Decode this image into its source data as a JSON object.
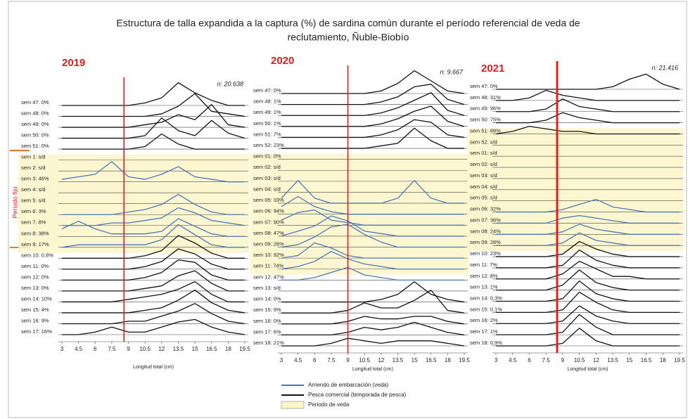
{
  "title": [
    "Estructura de talla expandida a la captura (%) de sardina común durante el período referencial de veda de",
    "reclutamiento, Ñuble-Biobío"
  ],
  "side_label": "Periodo fijo",
  "legend": [
    {
      "label": "Arriendo de embarcación (veda)",
      "color": "#4a78b5"
    },
    {
      "label": "Pesca comercial (temporada de pesca)",
      "color": "#111111"
    },
    {
      "label": "Periodo de veda",
      "color": "#fbf6c8"
    }
  ],
  "chart_data": [
    {
      "type": "ridgeline",
      "title": "2019",
      "annotation": "n: 20.638",
      "xlabel": "Longitud total (cm)",
      "xlim": [
        3,
        19.5
      ],
      "xticks": [
        3,
        4.5,
        6,
        7.5,
        9,
        10.5,
        12,
        13.5,
        15,
        16.5,
        18,
        19.5
      ],
      "reference_line": 8.6,
      "shaded_rows": [
        5,
        13
      ],
      "series": [
        {
          "name": "sem 47: 0%",
          "color": "#111111",
          "values": [
            0,
            0,
            0,
            0,
            0,
            1,
            3,
            9,
            5,
            2,
            0,
            0
          ]
        },
        {
          "name": "sem 48: 0%",
          "color": "#111111",
          "values": [
            0,
            0,
            0,
            0,
            0,
            0,
            1,
            4,
            9,
            2,
            1,
            0
          ]
        },
        {
          "name": "sem 49: 0%",
          "color": "#111111",
          "values": [
            0,
            0,
            0,
            0,
            0,
            1,
            2,
            5,
            3,
            9,
            1,
            0
          ]
        },
        {
          "name": "sem 50: 0%",
          "color": "#111111",
          "values": [
            0,
            0,
            0,
            0,
            0,
            1,
            8,
            3,
            1,
            7,
            2,
            0
          ]
        },
        {
          "name": "sem 51: 0%",
          "color": "#111111",
          "values": [
            0,
            0,
            0,
            0,
            0,
            1,
            6,
            2,
            0,
            0,
            0,
            0
          ]
        },
        {
          "name": "sem 1: s/d",
          "color": "#4a78b5"
        },
        {
          "name": "sem 2: s/d",
          "color": "#4a78b5"
        },
        {
          "name": "sem 3: 46%",
          "color": "#4a78b5",
          "values": [
            1,
            2,
            3,
            8,
            2,
            1,
            3,
            6,
            2,
            1,
            0,
            0
          ]
        },
        {
          "name": "sem 4: s/d",
          "color": "#4a78b5"
        },
        {
          "name": "sem 5: s/d",
          "color": "#4a78b5"
        },
        {
          "name": "sem 6: 3%",
          "color": "#4a78b5",
          "values": [
            0,
            0,
            0,
            0,
            1,
            2,
            4,
            8,
            4,
            1,
            0,
            0
          ]
        },
        {
          "name": "sem 7: 8%",
          "color": "#4a78b5",
          "values": [
            0,
            0,
            0,
            1,
            1,
            2,
            3,
            7,
            5,
            2,
            1,
            0
          ]
        },
        {
          "name": "sem 8: 38%",
          "color": "#4a78b5",
          "values": [
            3,
            6,
            3,
            1,
            1,
            1,
            2,
            7,
            4,
            1,
            0,
            0
          ]
        },
        {
          "name": "sem 9: 17%",
          "color": "#4a78b5",
          "values": [
            0,
            1,
            1,
            1,
            1,
            1,
            3,
            9,
            5,
            1,
            0,
            0
          ]
        },
        {
          "name": "sem 10: 0,8%",
          "color": "#111111",
          "values": [
            0,
            0,
            0,
            0,
            0,
            1,
            3,
            9,
            6,
            2,
            0,
            0
          ]
        },
        {
          "name": "sem 11: 0%",
          "color": "#111111",
          "values": [
            0,
            0,
            0,
            0,
            0,
            1,
            3,
            8,
            6,
            2,
            0,
            0
          ]
        },
        {
          "name": "sem 12: 0%",
          "color": "#111111",
          "values": [
            0,
            0,
            0,
            0,
            0,
            1,
            3,
            8,
            7,
            2,
            0,
            0
          ]
        },
        {
          "name": "sem 13: 0%",
          "color": "#111111",
          "values": [
            0,
            0,
            0,
            0,
            0,
            1,
            2,
            6,
            8,
            3,
            0,
            0
          ]
        },
        {
          "name": "sem 14: 10%",
          "color": "#111111",
          "values": [
            0,
            0,
            0,
            0,
            1,
            2,
            3,
            5,
            8,
            3,
            0,
            0
          ]
        },
        {
          "name": "sem 15: 4%",
          "color": "#111111",
          "values": [
            0,
            0,
            0,
            0,
            0,
            1,
            2,
            5,
            9,
            4,
            1,
            0
          ]
        },
        {
          "name": "sem 16: 9%",
          "color": "#111111",
          "values": [
            0,
            0,
            0,
            0,
            1,
            1,
            3,
            5,
            8,
            4,
            1,
            0
          ]
        },
        {
          "name": "sem 17: 16%",
          "color": "#111111",
          "values": [
            0,
            0,
            1,
            3,
            1,
            1,
            3,
            5,
            6,
            3,
            1,
            0
          ]
        }
      ]
    },
    {
      "type": "ridgeline",
      "title": "2020",
      "annotation": "n: 9.667",
      "xlabel": "Longitud total (cm)",
      "xlim": [
        3,
        19.5
      ],
      "xticks": [
        3,
        4.5,
        6,
        7.5,
        9,
        10.5,
        12,
        13.5,
        15,
        16.5,
        18,
        19.5
      ],
      "reference_line": 9,
      "shaded_rows": [
        6,
        16
      ],
      "series": [
        {
          "name": "sem 47: 0%",
          "color": "#111111",
          "values": [
            0,
            0,
            0,
            0,
            0,
            0,
            1,
            4,
            9,
            5,
            1,
            0
          ]
        },
        {
          "name": "sem 48: 1%",
          "color": "#111111",
          "values": [
            0,
            0,
            0,
            0,
            0,
            0,
            1,
            3,
            7,
            8,
            2,
            0
          ]
        },
        {
          "name": "sem 49: 1%",
          "color": "#111111",
          "values": [
            0,
            0,
            0,
            0,
            0,
            0,
            1,
            3,
            6,
            9,
            2,
            0
          ]
        },
        {
          "name": "sem 50: 1%",
          "color": "#111111",
          "values": [
            0,
            0,
            0,
            0,
            0,
            0,
            1,
            3,
            6,
            8,
            2,
            0
          ]
        },
        {
          "name": "sem 51: 7%",
          "color": "#111111",
          "values": [
            0,
            0,
            0,
            0,
            0,
            0,
            1,
            3,
            7,
            6,
            1,
            0
          ]
        },
        {
          "name": "sem 52: 23%",
          "color": "#111111",
          "values": [
            0,
            0,
            0,
            0,
            0,
            0,
            1,
            2,
            8,
            3,
            0,
            0
          ]
        },
        {
          "name": "sem 01: 0%",
          "color": "#4a78b5"
        },
        {
          "name": "sem 02: s/d",
          "color": "#4a78b5"
        },
        {
          "name": "sem 03: s/d",
          "color": "#4a78b5"
        },
        {
          "name": "sem 04: s/d",
          "color": "#4a78b5"
        },
        {
          "name": "sem 05: 33%",
          "color": "#4a78b5",
          "values": [
            2,
            9,
            2,
            0,
            0,
            0,
            0,
            2,
            9,
            2,
            0,
            0
          ]
        },
        {
          "name": "sem 06: 94%",
          "color": "#4a78b5",
          "values": [
            3,
            7,
            3,
            1,
            0,
            0,
            0,
            0,
            0,
            0,
            0,
            0
          ]
        },
        {
          "name": "sem 07: 90%",
          "color": "#4a78b5",
          "values": [
            2,
            5,
            6,
            2,
            1,
            0,
            0,
            0,
            0,
            0,
            0,
            0
          ]
        },
        {
          "name": "sem 08: 47%",
          "color": "#4a78b5",
          "values": [
            0,
            2,
            4,
            8,
            6,
            2,
            1,
            0,
            0,
            0,
            0,
            0
          ]
        },
        {
          "name": "sem 09: 26%",
          "color": "#4a78b5",
          "values": [
            0,
            1,
            4,
            8,
            9,
            5,
            2,
            0,
            0,
            0,
            0,
            0
          ]
        },
        {
          "name": "sem 10: 92%",
          "color": "#4a78b5",
          "values": [
            0,
            1,
            6,
            4,
            1,
            0,
            0,
            0,
            0,
            0,
            0,
            0
          ]
        },
        {
          "name": "sem 11: 74%",
          "color": "#4a78b5",
          "values": [
            0,
            1,
            3,
            7,
            4,
            2,
            1,
            0,
            0,
            0,
            0,
            0
          ]
        },
        {
          "name": "sem 12: 47%",
          "color": "#4a78b5",
          "values": [
            0,
            0,
            1,
            3,
            5,
            2,
            1,
            0,
            0,
            0,
            0,
            0
          ]
        },
        {
          "name": "sem 13: s/d",
          "color": "#111111"
        },
        {
          "name": "sem 14: 0%",
          "color": "#111111",
          "values": [
            0,
            0,
            0,
            0,
            0,
            0,
            1,
            3,
            8,
            3,
            1,
            0
          ]
        },
        {
          "name": "sem 15: 9%",
          "color": "#111111",
          "values": [
            0,
            0,
            0,
            0,
            1,
            4,
            2,
            2,
            5,
            9,
            1,
            0
          ]
        },
        {
          "name": "sem 16: 0%",
          "color": "#111111",
          "values": [
            0,
            0,
            0,
            0,
            1,
            3,
            2,
            2,
            3,
            3,
            1,
            0
          ]
        },
        {
          "name": "sem 17: 6%",
          "color": "#111111",
          "values": [
            0,
            0,
            0,
            0,
            1,
            3,
            2,
            3,
            5,
            3,
            1,
            0
          ]
        },
        {
          "name": "sem 18: 21%",
          "color": "#111111",
          "values": [
            0,
            0,
            0,
            1,
            3,
            2,
            1,
            2,
            2,
            2,
            1,
            0
          ]
        }
      ]
    },
    {
      "type": "ridgeline",
      "title": "2021",
      "annotation": "n: 21.416",
      "xlabel": "Longitud total (cm)",
      "xlim": [
        3,
        19.5
      ],
      "xticks": [
        3,
        4.5,
        6,
        7.5,
        9,
        10.5,
        12,
        13.5,
        15,
        16.5,
        18,
        19.5
      ],
      "reference_line": 8.5,
      "shaded_rows": [
        4,
        14
      ],
      "series": [
        {
          "name": "sem 47: 0%",
          "color": "#111111",
          "values": [
            0,
            0,
            0,
            0,
            0,
            0,
            0,
            1,
            4,
            6,
            2,
            0
          ]
        },
        {
          "name": "sem 48: 31%",
          "color": "#111111",
          "values": [
            0,
            0,
            1,
            4,
            2,
            1,
            0,
            0,
            0,
            0,
            0,
            0
          ]
        },
        {
          "name": "sem 49: 96%",
          "color": "#111111",
          "values": [
            0,
            0,
            0,
            1,
            5,
            2,
            1,
            0,
            0,
            0,
            0,
            0
          ]
        },
        {
          "name": "sem 50: 75%",
          "color": "#111111",
          "values": [
            0,
            0,
            0,
            1,
            4,
            2,
            1,
            0,
            0,
            0,
            0,
            0
          ]
        },
        {
          "name": "sem 51: 89%",
          "color": "#111111",
          "values": [
            0,
            1,
            3,
            2,
            1,
            1,
            0,
            0,
            0,
            0,
            0,
            0
          ]
        },
        {
          "name": "sem 52: s/d",
          "color": "#4a78b5"
        },
        {
          "name": "sem 01: s/d",
          "color": "#4a78b5"
        },
        {
          "name": "sem 02: s/d",
          "color": "#4a78b5"
        },
        {
          "name": "sem 03: s/d",
          "color": "#4a78b5"
        },
        {
          "name": "sem 04: s/d",
          "color": "#4a78b5"
        },
        {
          "name": "sem 05: s/d",
          "color": "#4a78b5"
        },
        {
          "name": "sem 06: 32%",
          "color": "#4a78b5",
          "values": [
            0,
            0,
            0,
            0,
            1,
            3,
            5,
            2,
            1,
            0,
            0,
            0
          ]
        },
        {
          "name": "sem 07: 36%",
          "color": "#4a78b5",
          "values": [
            0,
            0,
            0,
            0,
            2,
            3,
            2,
            1,
            0,
            0,
            0,
            0
          ]
        },
        {
          "name": "sem 08: 24%",
          "color": "#4a78b5",
          "values": [
            0,
            0,
            0,
            0,
            1,
            4,
            2,
            1,
            0,
            0,
            0,
            0
          ]
        },
        {
          "name": "sem 09: 28%",
          "color": "#4a78b5",
          "values": [
            0,
            0,
            0,
            0,
            1,
            5,
            2,
            1,
            0,
            0,
            0,
            0
          ]
        },
        {
          "name": "sem 10: 23%",
          "color": "#111111",
          "values": [
            0,
            0,
            0,
            0,
            1,
            6,
            3,
            1,
            0,
            0,
            0,
            0
          ]
        },
        {
          "name": "sem 11: 7%",
          "color": "#111111",
          "values": [
            0,
            0,
            0,
            0,
            1,
            7,
            3,
            1,
            0,
            0,
            0,
            0
          ]
        },
        {
          "name": "sem 12: 8%",
          "color": "#111111",
          "values": [
            0,
            0,
            0,
            0,
            2,
            7,
            4,
            1,
            1,
            0,
            0,
            0
          ]
        },
        {
          "name": "sem 13: 1%",
          "color": "#111111",
          "values": [
            0,
            0,
            0,
            0,
            2,
            8,
            3,
            1,
            0,
            0,
            0,
            0
          ]
        },
        {
          "name": "sem 14: 0,3%",
          "color": "#111111",
          "values": [
            0,
            0,
            0,
            0,
            1,
            8,
            3,
            1,
            0,
            0,
            0,
            0
          ]
        },
        {
          "name": "sem 15: 0,1%",
          "color": "#111111",
          "values": [
            0,
            0,
            0,
            0,
            1,
            8,
            4,
            1,
            0,
            0,
            0,
            0
          ]
        },
        {
          "name": "sem 16: 2%",
          "color": "#111111",
          "values": [
            0,
            0,
            0,
            0,
            1,
            7,
            3,
            1,
            0,
            0,
            0,
            0
          ]
        },
        {
          "name": "sem 17: 1%",
          "color": "#111111",
          "values": [
            0,
            0,
            0,
            0,
            1,
            8,
            3,
            0,
            0,
            0,
            0,
            0
          ]
        },
        {
          "name": "sem 18: 0,9%",
          "color": "#111111",
          "values": [
            0,
            0,
            0,
            0,
            1,
            7,
            2,
            0,
            0,
            0,
            0,
            0
          ]
        }
      ]
    }
  ]
}
